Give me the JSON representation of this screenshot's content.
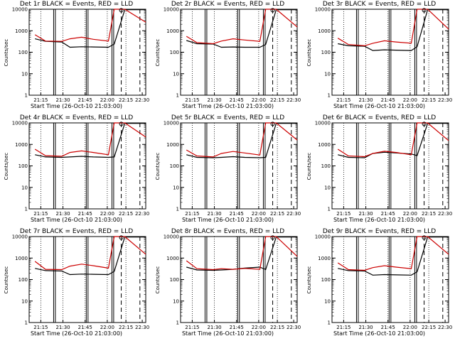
{
  "chart_data": [
    {
      "type": "line",
      "title": "Det 1r BLACK = Events, RED = LLD",
      "xlabel": "Start Time (26-Oct-10 21:03:00)",
      "ylabel": "Counts/sec",
      "x_ticks": [
        "21:15",
        "21:30",
        "21:45",
        "22:00",
        "22:15",
        "22:30"
      ],
      "y_ticks": [
        "1",
        "10",
        "100",
        "1000",
        "10000"
      ],
      "y_scale": "log",
      "ylim": [
        1,
        10000
      ],
      "series": [
        {
          "color": "#000000",
          "values": [
            420,
            320,
            300,
            170,
            180,
            175,
            170,
            240,
            9500,
            9500
          ]
        },
        {
          "color": "#cc0000",
          "values": [
            650,
            330,
            320,
            420,
            500,
            400,
            330,
            10000,
            10000,
            2500
          ]
        }
      ]
    },
    {
      "type": "line",
      "title": "Det 2r BLACK = Events, RED = LLD",
      "xlabel": "Start Time (26-Oct-10 21:03:00)",
      "ylabel": "Counts/sec",
      "x_ticks": [
        "21:15",
        "21:30",
        "21:45",
        "22:00",
        "22:15",
        "22:30"
      ],
      "y_ticks": [
        "1",
        "10",
        "100",
        "1000",
        "10000"
      ],
      "y_scale": "log",
      "ylim": [
        1,
        10000
      ],
      "series": [
        {
          "color": "#000000",
          "values": [
            350,
            250,
            240,
            170,
            175,
            170,
            170,
            230,
            9500,
            9500
          ]
        },
        {
          "color": "#cc0000",
          "values": [
            550,
            280,
            250,
            330,
            420,
            370,
            320,
            10000,
            10000,
            1500
          ]
        }
      ]
    },
    {
      "type": "line",
      "title": "Det 3r BLACK = Events, RED = LLD",
      "xlabel": "Start Time (26-Oct-10 21:03:00)",
      "ylabel": "Counts/sec",
      "x_ticks": [
        "21:15",
        "21:30",
        "21:45",
        "22:00",
        "22:15",
        "22:30"
      ],
      "y_ticks": [
        "1",
        "10",
        "100",
        "1000",
        "10000"
      ],
      "y_scale": "log",
      "ylim": [
        1,
        10000
      ],
      "series": [
        {
          "color": "#000000",
          "values": [
            250,
            200,
            190,
            120,
            130,
            125,
            120,
            180,
            9500,
            9500
          ]
        },
        {
          "color": "#cc0000",
          "values": [
            450,
            230,
            200,
            260,
            340,
            300,
            260,
            10000,
            10000,
            1200
          ]
        }
      ]
    },
    {
      "type": "line",
      "title": "Det 4r BLACK = Events, RED = LLD",
      "xlabel": "Start Time (26-Oct-10 21:03:00)",
      "ylabel": "Counts/sec",
      "x_ticks": [
        "21:15",
        "21:30",
        "21:45",
        "22:00",
        "22:15",
        "22:30"
      ],
      "y_ticks": [
        "1",
        "10",
        "100",
        "1000",
        "10000"
      ],
      "y_scale": "log",
      "ylim": [
        1,
        10000
      ],
      "series": [
        {
          "color": "#000000",
          "values": [
            330,
            260,
            250,
            260,
            280,
            260,
            250,
            260,
            9500,
            9500
          ]
        },
        {
          "color": "#cc0000",
          "values": [
            600,
            300,
            280,
            420,
            500,
            420,
            330,
            10000,
            10000,
            2200
          ]
        }
      ]
    },
    {
      "type": "line",
      "title": "Det 5r BLACK = Events, RED = LLD",
      "xlabel": "Start Time (26-Oct-10 21:03:00)",
      "ylabel": "Counts/sec",
      "x_ticks": [
        "21:15",
        "21:30",
        "21:45",
        "22:00",
        "22:15",
        "22:30"
      ],
      "y_ticks": [
        "1",
        "10",
        "100",
        "1000",
        "10000"
      ],
      "y_scale": "log",
      "ylim": [
        1,
        10000
      ],
      "series": [
        {
          "color": "#000000",
          "values": [
            330,
            250,
            240,
            250,
            270,
            250,
            240,
            250,
            9500,
            9500
          ]
        },
        {
          "color": "#cc0000",
          "values": [
            550,
            290,
            260,
            380,
            470,
            400,
            320,
            10000,
            10000,
            1600
          ]
        }
      ]
    },
    {
      "type": "line",
      "title": "Det 6r BLACK = Events, RED = LLD",
      "xlabel": "Start Time (26-Oct-10 21:03:00)",
      "ylabel": "Counts/sec",
      "x_ticks": [
        "21:15",
        "21:30",
        "21:45",
        "22:00",
        "22:15",
        "22:30"
      ],
      "y_ticks": [
        "1",
        "10",
        "100",
        "1000",
        "10000"
      ],
      "y_scale": "log",
      "ylim": [
        1,
        10000
      ],
      "series": [
        {
          "color": "#000000",
          "values": [
            330,
            250,
            240,
            380,
            430,
            400,
            360,
            300,
            9500,
            9500
          ]
        },
        {
          "color": "#cc0000",
          "values": [
            600,
            290,
            270,
            380,
            480,
            420,
            330,
            10000,
            10000,
            1500
          ]
        }
      ]
    },
    {
      "type": "line",
      "title": "Det 7r BLACK = Events, RED = LLD",
      "xlabel": "Start Time (26-Oct-10 21:03:00)",
      "ylabel": "Counts/sec",
      "x_ticks": [
        "21:15",
        "21:30",
        "21:45",
        "22:00",
        "22:15",
        "22:30"
      ],
      "y_ticks": [
        "1",
        "10",
        "100",
        "1000",
        "10000"
      ],
      "y_scale": "log",
      "ylim": [
        1,
        10000
      ],
      "series": [
        {
          "color": "#000000",
          "values": [
            330,
            260,
            250,
            170,
            180,
            175,
            170,
            240,
            9500,
            9500
          ]
        },
        {
          "color": "#cc0000",
          "values": [
            700,
            300,
            290,
            420,
            520,
            440,
            340,
            10000,
            10000,
            1500
          ]
        }
      ]
    },
    {
      "type": "line",
      "title": "Det 8r BLACK = Events, RED = LLD",
      "xlabel": "Start Time (26-Oct-10 21:03:00)",
      "ylabel": "Counts/sec",
      "x_ticks": [
        "21:15",
        "21:30",
        "21:45",
        "22:00",
        "22:15",
        "22:30"
      ],
      "y_ticks": [
        "1",
        "10",
        "100",
        "1000",
        "10000"
      ],
      "y_scale": "log",
      "ylim": [
        1,
        10000
      ],
      "series": [
        {
          "color": "#000000",
          "values": [
            380,
            280,
            270,
            280,
            300,
            340,
            380,
            290,
            9500,
            9500
          ]
        },
        {
          "color": "#cc0000",
          "values": [
            750,
            320,
            290,
            320,
            300,
            330,
            300,
            10000,
            10000,
            1200
          ]
        }
      ]
    },
    {
      "type": "line",
      "title": "Det 9r BLACK = Events, RED = LLD",
      "xlabel": "Start Time (26-Oct-10 21:03:00)",
      "ylabel": "Counts/sec",
      "x_ticks": [
        "21:15",
        "21:30",
        "21:45",
        "22:00",
        "22:15",
        "22:30"
      ],
      "y_ticks": [
        "1",
        "10",
        "100",
        "1000",
        "10000"
      ],
      "y_scale": "log",
      "ylim": [
        1,
        10000
      ],
      "series": [
        {
          "color": "#000000",
          "values": [
            330,
            260,
            250,
            160,
            170,
            165,
            160,
            230,
            9500,
            9500
          ]
        },
        {
          "color": "#cc0000",
          "values": [
            600,
            290,
            270,
            360,
            440,
            380,
            320,
            10000,
            10000,
            1500
          ]
        }
      ]
    }
  ]
}
